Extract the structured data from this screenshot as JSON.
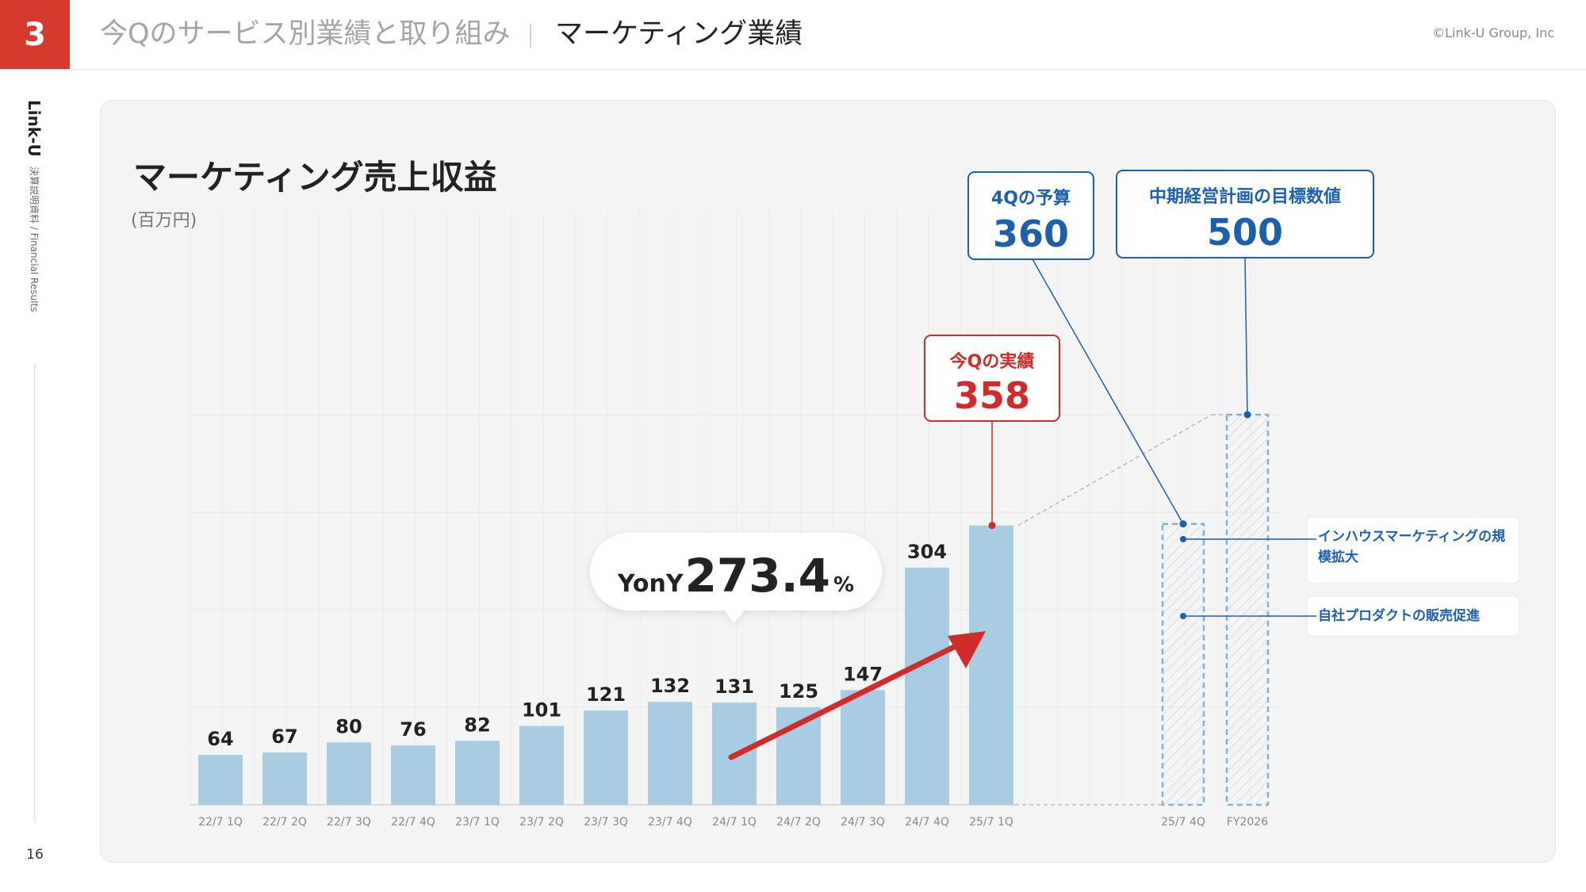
{
  "header": {
    "section_number": "3",
    "breadcrumb": "今Qのサービス別業績と取り組み",
    "title": "マーケティング業績",
    "copyright": "©Link-U Group, Inc"
  },
  "sidebar": {
    "brand": "Link-U",
    "doc_label": "決算説明資料 / Financial Results",
    "page_number": "16"
  },
  "colors": {
    "accent_red": "#d63a2f",
    "bar": "#a8cde3",
    "highlight_red": "#d12b2b",
    "annotation_blue": "#1a5fb0"
  },
  "chart_data": {
    "type": "bar",
    "title": "マーケティング売上収益",
    "ylabel": "(百万円)",
    "ylim": [
      0,
      600
    ],
    "grid": true,
    "categories": [
      "22/7 1Q",
      "22/7 2Q",
      "22/7 3Q",
      "22/7 4Q",
      "23/7 1Q",
      "23/7 2Q",
      "23/7 3Q",
      "23/7 4Q",
      "24/7 1Q",
      "24/7 2Q",
      "24/7 3Q",
      "24/7 4Q",
      "25/7 1Q"
    ],
    "values": [
      64,
      67,
      80,
      76,
      82,
      101,
      121,
      132,
      131,
      125,
      147,
      304,
      358
    ],
    "projections": [
      {
        "category": "25/7 4Q",
        "value": 360
      },
      {
        "category": "FY2026",
        "value": 500
      }
    ],
    "yoy": {
      "prefix": "YonY",
      "value": "273.4",
      "unit": "%"
    },
    "actual_callout": {
      "label": "今Qの実績",
      "value": "358"
    },
    "budget_callout": {
      "label": "4Qの予算",
      "value": "360"
    },
    "target_callout": {
      "label": "中期経営計画の目標数値",
      "value": "500"
    },
    "initiatives": [
      "インハウスマーケティングの規模拡大",
      "自社プロダクトの販売促進"
    ]
  }
}
